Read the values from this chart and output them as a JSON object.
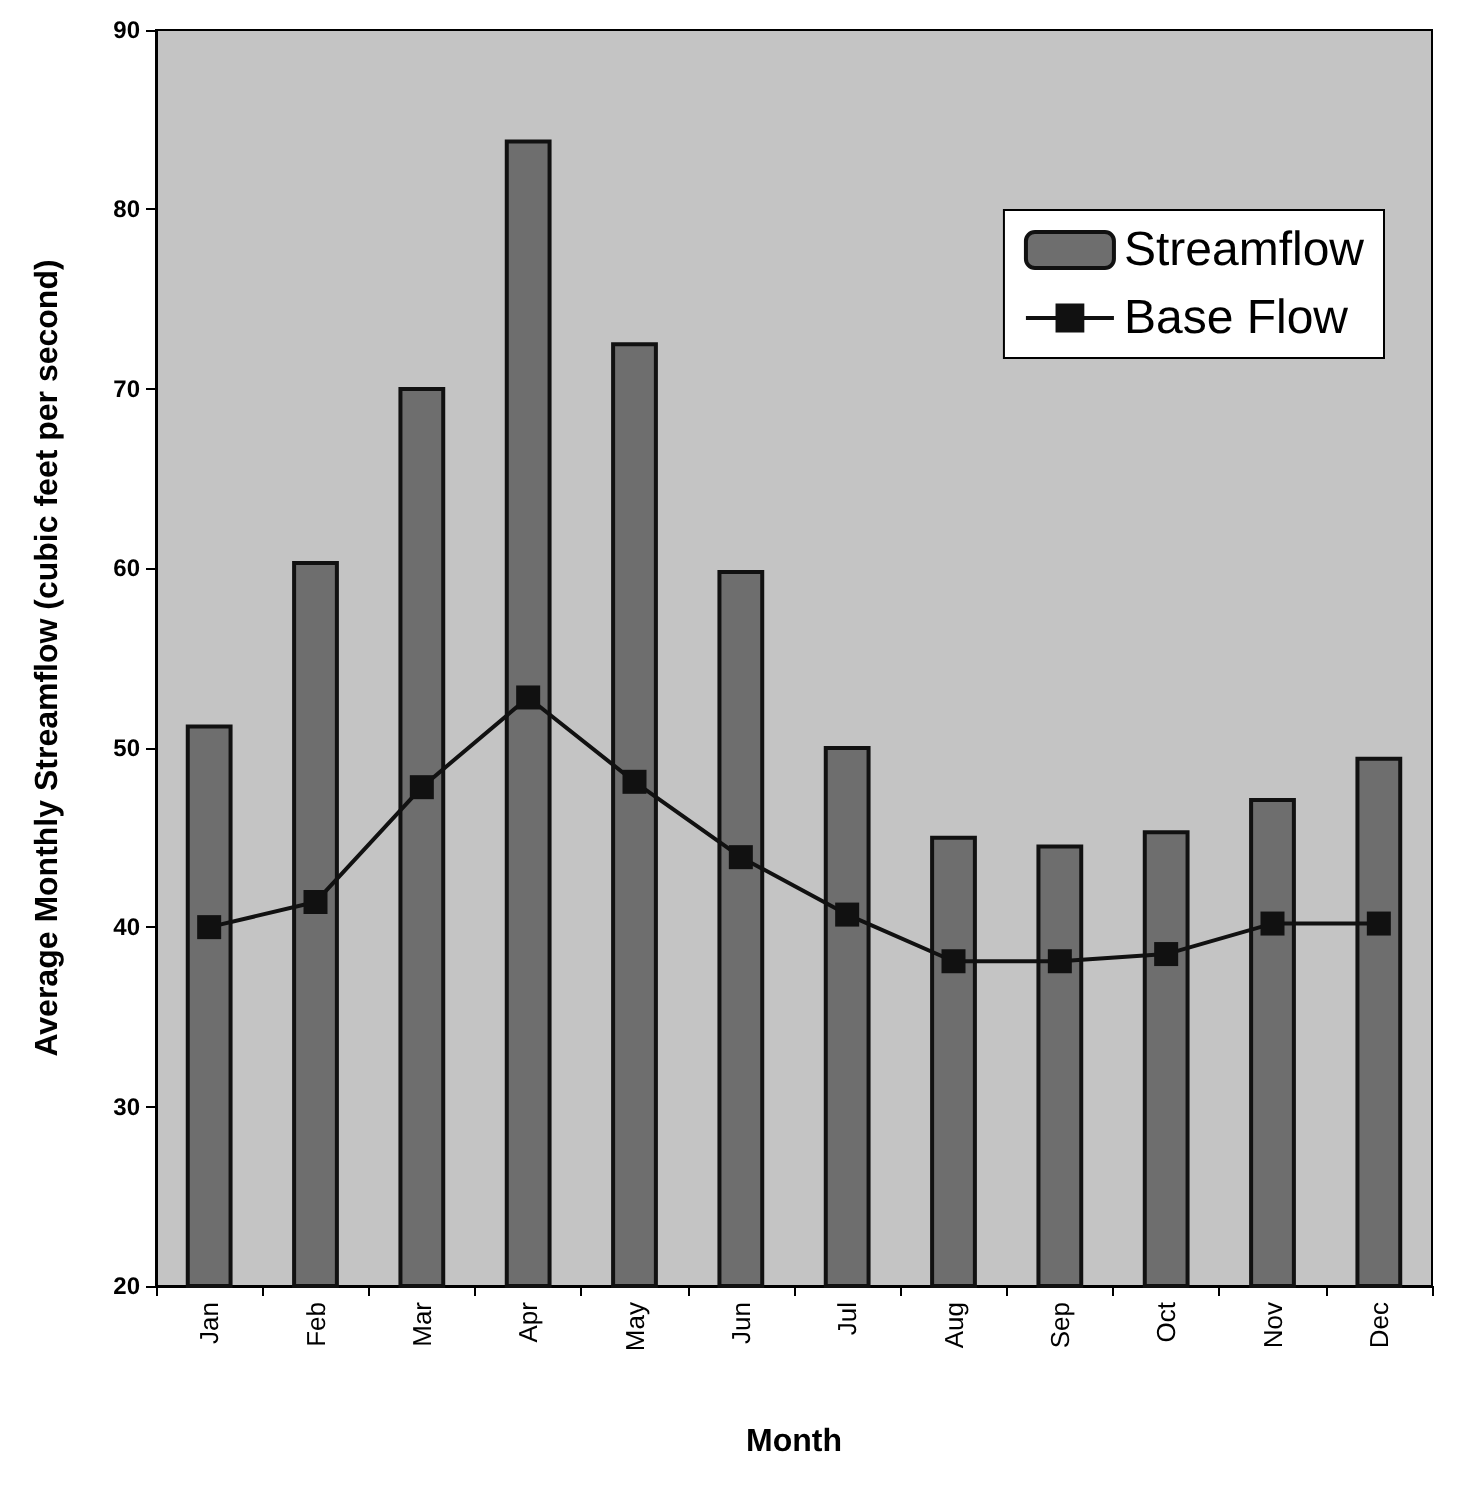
{
  "chart_data": {
    "type": "bar",
    "xlabel": "Month",
    "ylabel": "Average Monthly Streamflow (cubic feet per second)",
    "categories": [
      "Jan",
      "Feb",
      "Mar",
      "Apr",
      "May",
      "Jun",
      "Jul",
      "Aug",
      "Sep",
      "Oct",
      "Nov",
      "Dec"
    ],
    "series": [
      {
        "name": "Streamflow",
        "color": "#6e6e6e",
        "values": [
          51.3,
          60.4,
          70.1,
          83.9,
          72.6,
          59.9,
          50.1,
          45.1,
          44.6,
          45.4,
          47.2,
          49.5
        ]
      },
      {
        "name": "Base Flow",
        "type": "line",
        "color": "#111111",
        "marker": "square",
        "values": [
          40.0,
          41.4,
          47.8,
          52.8,
          48.1,
          43.9,
          40.7,
          38.1,
          38.1,
          38.5,
          40.2,
          40.2
        ]
      }
    ],
    "ylim": [
      20,
      90
    ],
    "yticks": [
      20,
      30,
      40,
      50,
      60,
      70,
      80,
      90
    ],
    "grid": false,
    "legend": "top right"
  }
}
